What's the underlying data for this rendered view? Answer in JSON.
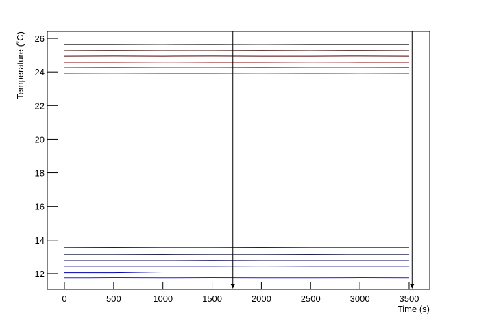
{
  "chart_data": {
    "type": "line",
    "xlabel": "Time (s)",
    "ylabel": "Temperature (˚C)",
    "xlim": [
      -174,
      3709
    ],
    "ylim": [
      11.06,
      26.41
    ],
    "xticks": [
      0,
      500,
      1000,
      1500,
      2000,
      2500,
      3000,
      3500
    ],
    "yticks": [
      12,
      14,
      16,
      18,
      20,
      22,
      24,
      26
    ],
    "markers": [
      1710,
      3530
    ],
    "x": [
      0,
      500,
      1000,
      1500,
      2000,
      2500,
      3000,
      3500
    ],
    "series": [
      {
        "color": "#000000",
        "values": [
          25.63,
          25.63,
          25.64,
          25.63,
          25.64,
          25.63,
          25.63,
          25.63
        ]
      },
      {
        "color": "#330000",
        "values": [
          25.27,
          25.28,
          25.27,
          25.27,
          25.28,
          25.27,
          25.28,
          25.27
        ]
      },
      {
        "color": "#550000",
        "values": [
          24.94,
          24.95,
          24.94,
          24.95,
          24.94,
          24.94,
          24.95,
          24.94
        ]
      },
      {
        "color": "#880000",
        "values": [
          24.58,
          24.58,
          24.59,
          24.58,
          24.58,
          24.59,
          24.58,
          24.58
        ]
      },
      {
        "color": "#aa1111",
        "values": [
          24.25,
          24.26,
          24.25,
          24.25,
          24.26,
          24.25,
          24.25,
          24.26
        ]
      },
      {
        "color": "#cc2222",
        "values": [
          23.92,
          23.93,
          23.92,
          23.92,
          23.93,
          23.92,
          23.93,
          23.92
        ]
      },
      {
        "color": "#000000",
        "values": [
          13.55,
          13.56,
          13.55,
          13.55,
          13.56,
          13.55,
          13.55,
          13.55
        ]
      },
      {
        "color": "#000033",
        "values": [
          13.14,
          13.14,
          13.15,
          13.14,
          13.14,
          13.15,
          13.14,
          13.14
        ]
      },
      {
        "color": "#000055",
        "values": [
          12.77,
          12.77,
          12.77,
          12.78,
          12.77,
          12.77,
          12.77,
          12.77
        ]
      },
      {
        "color": "#000088",
        "values": [
          12.45,
          12.45,
          12.45,
          12.45,
          12.46,
          12.45,
          12.45,
          12.45
        ]
      },
      {
        "color": "#0000aa",
        "values": [
          12.05,
          12.05,
          12.1,
          12.1,
          12.1,
          12.1,
          12.1,
          12.1
        ]
      },
      {
        "color": "#2222cc",
        "values": [
          11.76,
          11.77,
          11.76,
          11.77,
          11.76,
          11.76,
          11.77,
          11.76
        ]
      }
    ]
  }
}
